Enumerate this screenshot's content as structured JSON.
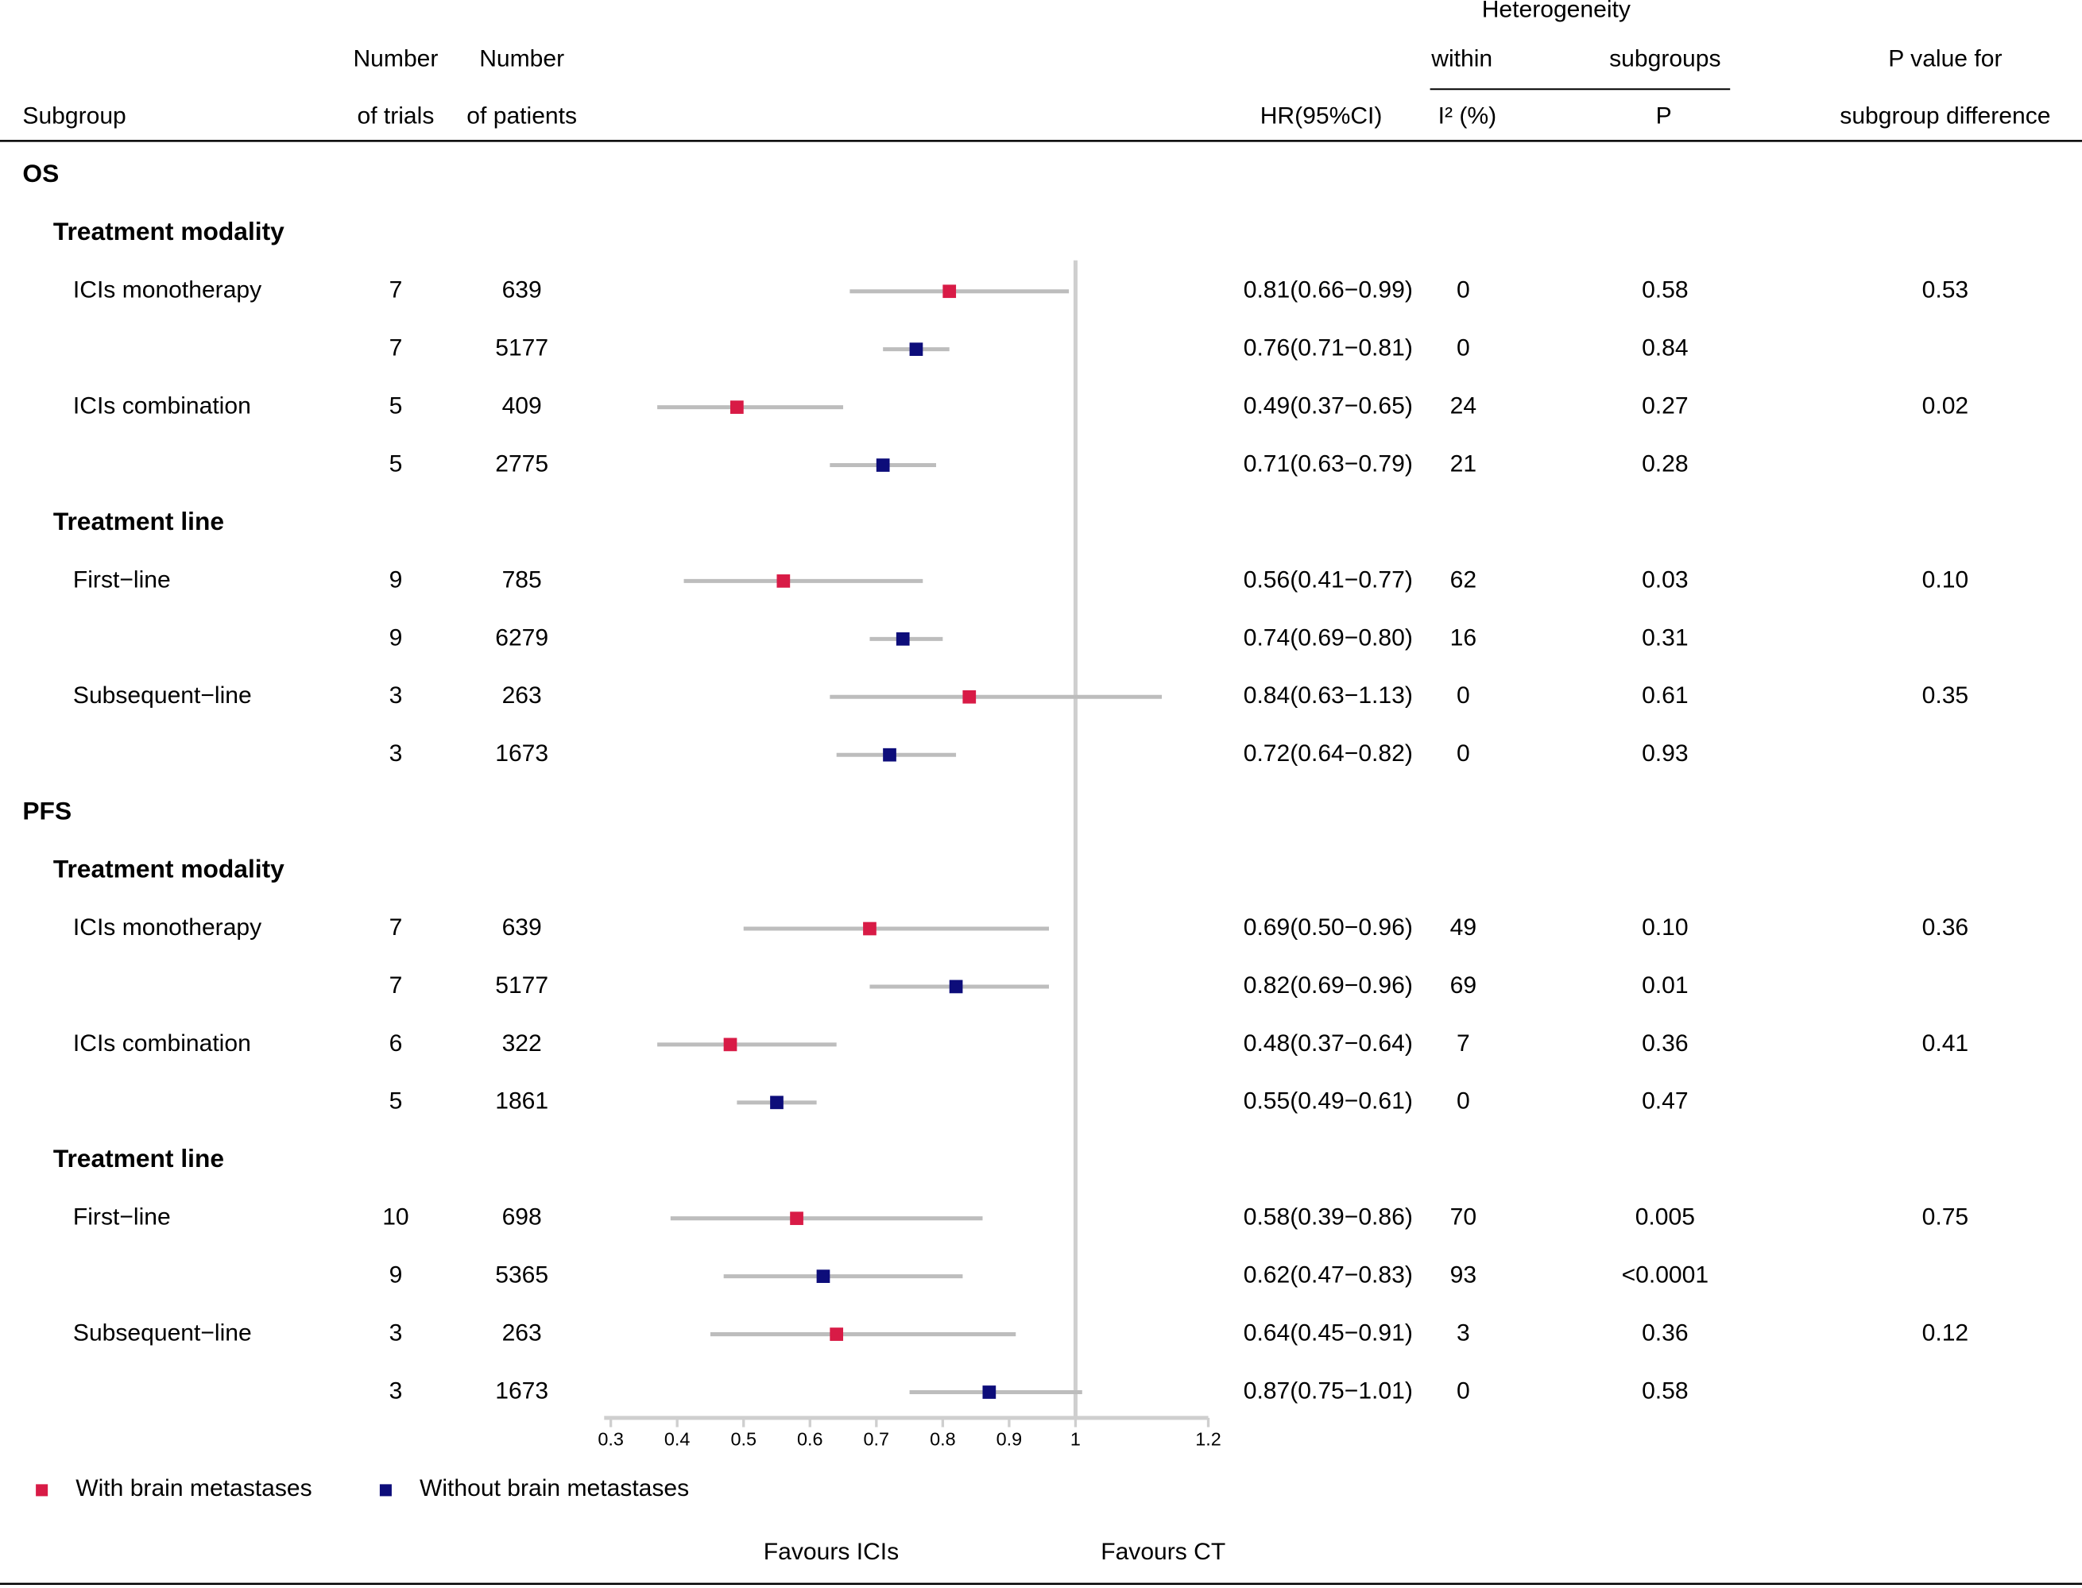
{
  "chart_data": {
    "type": "forest",
    "headers": {
      "subgroup": "Subgroup",
      "trials": [
        "Number",
        "of trials"
      ],
      "patients": [
        "Number",
        "of patients"
      ],
      "hr": "HR(95%CI)",
      "heterogeneity": "Heterogeneity",
      "within": "within",
      "subgroups": "subgroups",
      "i2": "I² (%)",
      "p": "P",
      "pdiff": [
        "P value for",
        "subgroup difference"
      ]
    },
    "series": [
      {
        "name": "With brain metastases",
        "color": "#d81b46"
      },
      {
        "name": "Without brain metastases",
        "color": "#0d0d7a"
      }
    ],
    "ci_color": "#bdbdbd",
    "xlim": [
      0.3,
      1.2
    ],
    "xticks": [
      0.3,
      0.4,
      0.5,
      0.6,
      0.7,
      0.8,
      0.9,
      1,
      1.2
    ],
    "ref_line": 1,
    "favours": [
      "Favours ICIs",
      "Favours CT"
    ],
    "sections": [
      {
        "title": "OS",
        "groups": [
          {
            "title": "Treatment modality",
            "subgroups": [
              {
                "label": "ICIs monotherapy",
                "pdiff": "0.53",
                "rows": [
                  {
                    "trials": 7,
                    "patients": 639,
                    "hr": 0.81,
                    "lo": 0.66,
                    "hi": 0.99,
                    "ci": "0.81(0.66−0.99)",
                    "i2": 0,
                    "p": "0.58"
                  },
                  {
                    "trials": 7,
                    "patients": 5177,
                    "hr": 0.76,
                    "lo": 0.71,
                    "hi": 0.81,
                    "ci": "0.76(0.71−0.81)",
                    "i2": 0,
                    "p": "0.84"
                  }
                ]
              },
              {
                "label": "ICIs combination",
                "pdiff": "0.02",
                "rows": [
                  {
                    "trials": 5,
                    "patients": 409,
                    "hr": 0.49,
                    "lo": 0.37,
                    "hi": 0.65,
                    "ci": "0.49(0.37−0.65)",
                    "i2": 24,
                    "p": "0.27"
                  },
                  {
                    "trials": 5,
                    "patients": 2775,
                    "hr": 0.71,
                    "lo": 0.63,
                    "hi": 0.79,
                    "ci": "0.71(0.63−0.79)",
                    "i2": 21,
                    "p": "0.28"
                  }
                ]
              }
            ]
          },
          {
            "title": "Treatment line",
            "subgroups": [
              {
                "label": "First−line",
                "pdiff": "0.10",
                "rows": [
                  {
                    "trials": 9,
                    "patients": 785,
                    "hr": 0.56,
                    "lo": 0.41,
                    "hi": 0.77,
                    "ci": "0.56(0.41−0.77)",
                    "i2": 62,
                    "p": "0.03"
                  },
                  {
                    "trials": 9,
                    "patients": 6279,
                    "hr": 0.74,
                    "lo": 0.69,
                    "hi": 0.8,
                    "ci": "0.74(0.69−0.80)",
                    "i2": 16,
                    "p": "0.31"
                  }
                ]
              },
              {
                "label": "Subsequent−line",
                "pdiff": "0.35",
                "rows": [
                  {
                    "trials": 3,
                    "patients": 263,
                    "hr": 0.84,
                    "lo": 0.63,
                    "hi": 1.13,
                    "ci": "0.84(0.63−1.13)",
                    "i2": 0,
                    "p": "0.61"
                  },
                  {
                    "trials": 3,
                    "patients": 1673,
                    "hr": 0.72,
                    "lo": 0.64,
                    "hi": 0.82,
                    "ci": "0.72(0.64−0.82)",
                    "i2": 0,
                    "p": "0.93"
                  }
                ]
              }
            ]
          }
        ]
      },
      {
        "title": "PFS",
        "groups": [
          {
            "title": "Treatment modality",
            "subgroups": [
              {
                "label": "ICIs monotherapy",
                "pdiff": "0.36",
                "rows": [
                  {
                    "trials": 7,
                    "patients": 639,
                    "hr": 0.69,
                    "lo": 0.5,
                    "hi": 0.96,
                    "ci": "0.69(0.50−0.96)",
                    "i2": 49,
                    "p": "0.10"
                  },
                  {
                    "trials": 7,
                    "patients": 5177,
                    "hr": 0.82,
                    "lo": 0.69,
                    "hi": 0.96,
                    "ci": "0.82(0.69−0.96)",
                    "i2": 69,
                    "p": "0.01"
                  }
                ]
              },
              {
                "label": "ICIs combination",
                "pdiff": "0.41",
                "rows": [
                  {
                    "trials": 6,
                    "patients": 322,
                    "hr": 0.48,
                    "lo": 0.37,
                    "hi": 0.64,
                    "ci": "0.48(0.37−0.64)",
                    "i2": 7,
                    "p": "0.36"
                  },
                  {
                    "trials": 5,
                    "patients": 1861,
                    "hr": 0.55,
                    "lo": 0.49,
                    "hi": 0.61,
                    "ci": "0.55(0.49−0.61)",
                    "i2": 0,
                    "p": "0.47"
                  }
                ]
              }
            ]
          },
          {
            "title": "Treatment line",
            "subgroups": [
              {
                "label": "First−line",
                "pdiff": "0.75",
                "rows": [
                  {
                    "trials": 10,
                    "patients": 698,
                    "hr": 0.58,
                    "lo": 0.39,
                    "hi": 0.86,
                    "ci": "0.58(0.39−0.86)",
                    "i2": 70,
                    "p": "0.005"
                  },
                  {
                    "trials": 9,
                    "patients": 5365,
                    "hr": 0.62,
                    "lo": 0.47,
                    "hi": 0.83,
                    "ci": "0.62(0.47−0.83)",
                    "i2": 93,
                    "p": "<0.0001"
                  }
                ]
              },
              {
                "label": "Subsequent−line",
                "pdiff": "0.12",
                "rows": [
                  {
                    "trials": 3,
                    "patients": 263,
                    "hr": 0.64,
                    "lo": 0.45,
                    "hi": 0.91,
                    "ci": "0.64(0.45−0.91)",
                    "i2": 3,
                    "p": "0.36"
                  },
                  {
                    "trials": 3,
                    "patients": 1673,
                    "hr": 0.87,
                    "lo": 0.75,
                    "hi": 1.01,
                    "ci": "0.87(0.75−1.01)",
                    "i2": 0,
                    "p": "0.58"
                  }
                ]
              }
            ]
          }
        ]
      }
    ]
  }
}
